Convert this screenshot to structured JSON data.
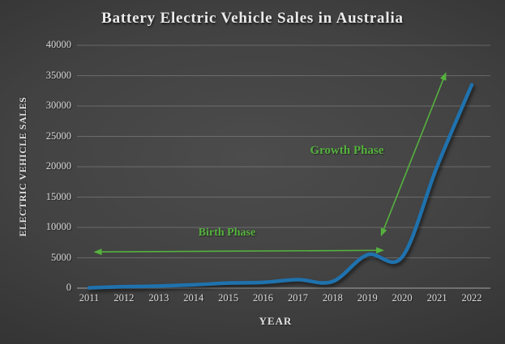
{
  "chart": {
    "colors": {
      "line_blue": "#1f72ad",
      "annotation_green": "#55b23e",
      "title_text": "#ebebeb",
      "tick_text": "#d9d9d9",
      "gridline": "rgba(185,185,185,0.33)",
      "axis_line": "rgba(200,200,200,0.6)",
      "background_center": "#4c4c4c",
      "background_edge": "#232323"
    }
  },
  "chart_data": {
    "type": "line",
    "title": "Battery Electric Vehicle Sales in Australia",
    "xlabel": "YEAR",
    "ylabel": "ELECTRIC VEHICLE SALES",
    "x": [
      2011,
      2012,
      2013,
      2014,
      2015,
      2016,
      2017,
      2018,
      2019,
      2020,
      2021,
      2022
    ],
    "values": [
      50,
      250,
      350,
      550,
      850,
      950,
      1400,
      1100,
      5500,
      5150,
      20000,
      33500
    ],
    "series_name": "Battery electric vehicle sales",
    "ylim": [
      0,
      40000
    ],
    "y_tick_step": 5000,
    "y_ticks": [
      "0",
      "5000",
      "10000",
      "15000",
      "20000",
      "25000",
      "30000",
      "35000",
      "40000"
    ],
    "grid": true,
    "legend": false,
    "annotations": [
      {
        "text": "Birth Phase",
        "shape": "horizontal-double-arrow",
        "x_span": [
          2011,
          2019.45
        ],
        "y": 6100
      },
      {
        "text": "Growth Phase",
        "shape": "diagonal-double-arrow",
        "from": {
          "x": 2019.4,
          "y": 8700
        },
        "to": {
          "x": 2021.25,
          "y": 35400
        }
      }
    ]
  }
}
